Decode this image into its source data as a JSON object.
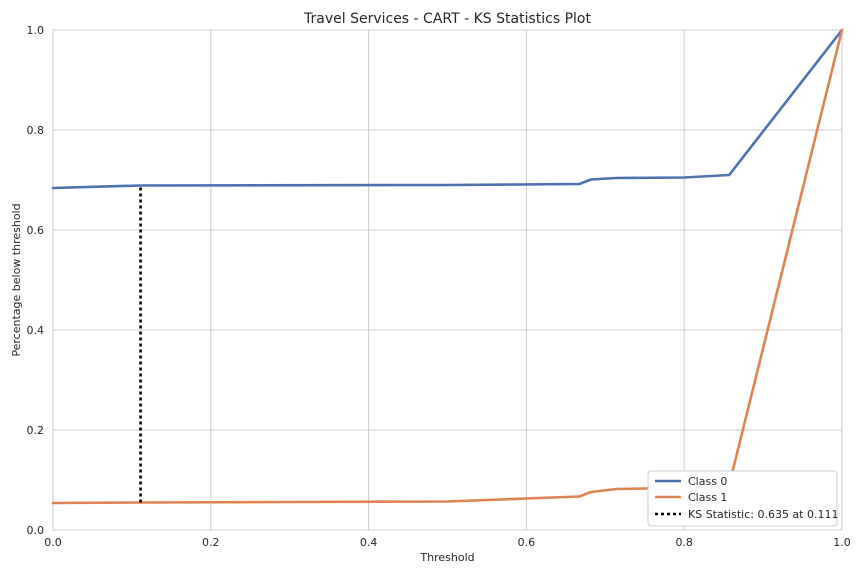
{
  "chart_data": {
    "type": "line",
    "title": "Travel Services - CART - KS Statistics Plot",
    "xlabel": "Threshold",
    "ylabel": "Percentage below threshold",
    "xlim": [
      0,
      1
    ],
    "ylim": [
      0,
      1
    ],
    "xticks": [
      "0.0",
      "0.2",
      "0.4",
      "0.6",
      "0.8",
      "1.0"
    ],
    "yticks": [
      "0.0",
      "0.2",
      "0.4",
      "0.6",
      "0.8",
      "1.0"
    ],
    "grid": true,
    "legend_position": "bottom-right",
    "series": [
      {
        "name": "Class 0",
        "color": "#4c72b0",
        "x": [
          0.0,
          0.111,
          0.5,
          0.667,
          0.682,
          0.714,
          0.8,
          0.857,
          1.0
        ],
        "y": [
          0.684,
          0.689,
          0.69,
          0.692,
          0.701,
          0.704,
          0.705,
          0.71,
          1.0
        ]
      },
      {
        "name": "Class 1",
        "color": "#dd8452",
        "x": [
          0.0,
          0.111,
          0.5,
          0.667,
          0.682,
          0.714,
          0.8,
          0.857,
          1.0
        ],
        "y": [
          0.054,
          0.055,
          0.057,
          0.067,
          0.076,
          0.082,
          0.084,
          0.09,
          1.0
        ]
      }
    ],
    "ks_statistic": {
      "label": "KS Statistic: 0.635 at 0.111",
      "x": 0.111,
      "y_low": 0.055,
      "y_high": 0.689,
      "color": "#000000"
    }
  }
}
